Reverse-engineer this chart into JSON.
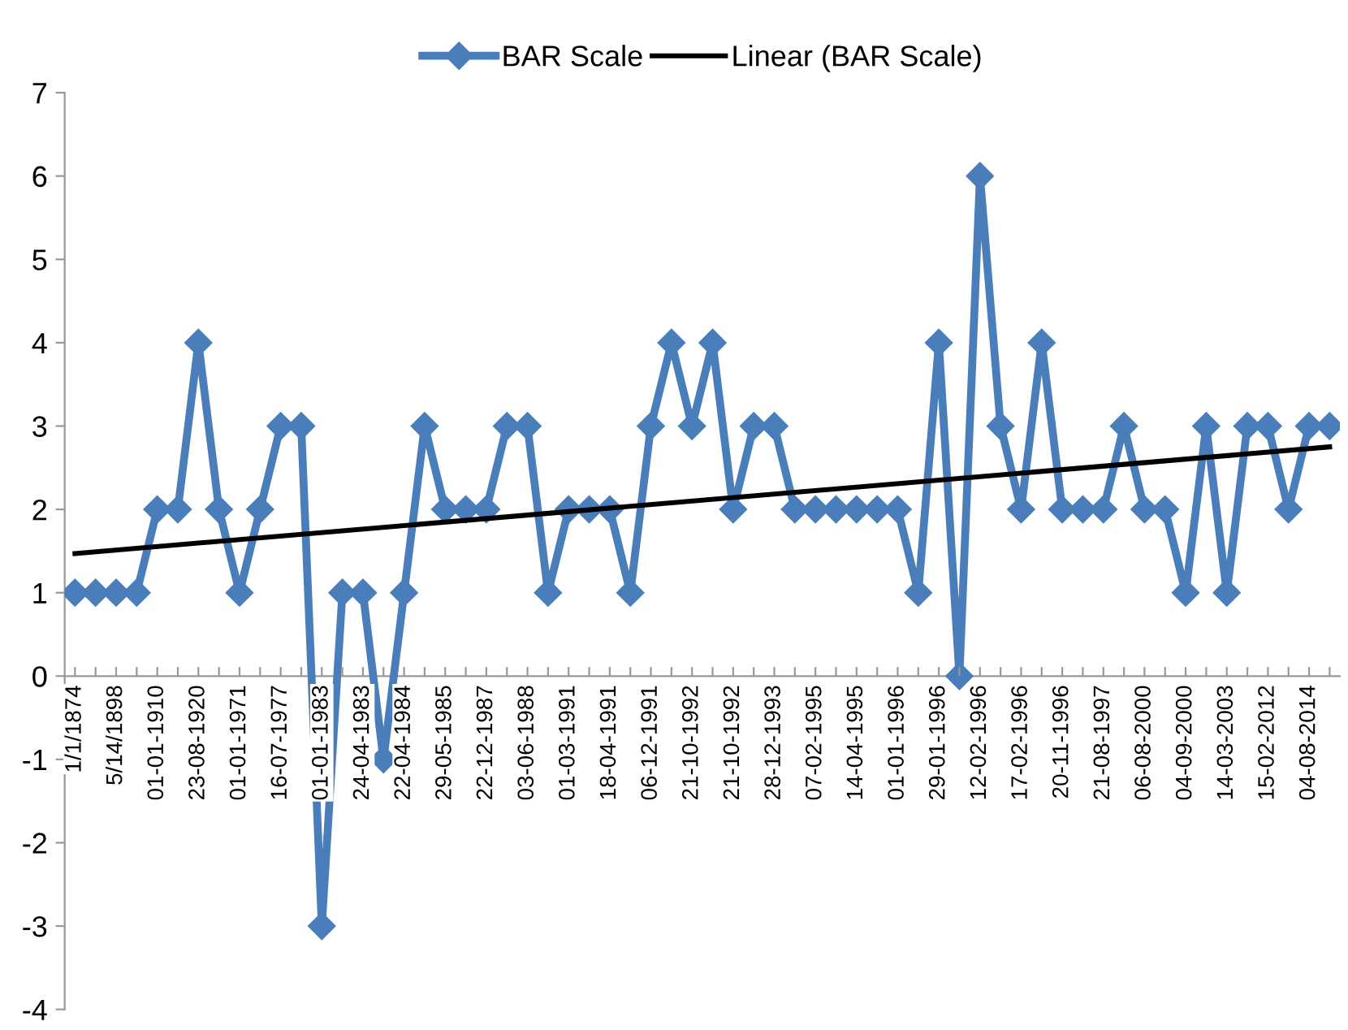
{
  "chart_data": {
    "type": "line",
    "categories": [
      "1/1/1874",
      null,
      "5/14/1898",
      null,
      "01-01-1910",
      null,
      "23-08-1920",
      null,
      "01-01-1971",
      null,
      "16-07-1977",
      null,
      "01-01-1983",
      null,
      "24-04-1983",
      null,
      "22-04-1984",
      null,
      "29-05-1985",
      null,
      "22-12-1987",
      null,
      "03-06-1988",
      null,
      "01-03-1991",
      null,
      "18-04-1991",
      null,
      "06-12-1991",
      null,
      "21-10-1992",
      null,
      "21-10-1992",
      null,
      "28-12-1993",
      null,
      "07-02-1995",
      null,
      "14-04-1995",
      null,
      "01-01-1996",
      null,
      "29-01-1996",
      null,
      "12-02-1996",
      null,
      "17-02-1996",
      null,
      "20-11-1996",
      null,
      "21-08-1997",
      null,
      "06-08-2000",
      null,
      "04-09-2000",
      null,
      "14-03-2003",
      null,
      "15-02-2012",
      null,
      "04-08-2014",
      null
    ],
    "series": [
      {
        "name": "BAR Scale",
        "color": "#4a7ebb",
        "marker": "diamond",
        "values": [
          1,
          1,
          1,
          1,
          2,
          2,
          4,
          2,
          1,
          2,
          3,
          3,
          -3,
          1,
          1,
          -1,
          1,
          3,
          2,
          2,
          2,
          3,
          3,
          1,
          2,
          2,
          2,
          1,
          3,
          4,
          3,
          4,
          2,
          3,
          3,
          2,
          2,
          2,
          2,
          2,
          2,
          1,
          4,
          0,
          6,
          3,
          2,
          4,
          2,
          2,
          2,
          3,
          2,
          2,
          1,
          3,
          1,
          3,
          3,
          2,
          3,
          3
        ]
      },
      {
        "name": "Linear (BAR Scale)",
        "color": "#000000",
        "marker": "none",
        "values": [
          1.47,
          null,
          null,
          null,
          null,
          null,
          null,
          null,
          null,
          null,
          null,
          null,
          null,
          null,
          null,
          null,
          null,
          null,
          null,
          null,
          null,
          null,
          null,
          null,
          null,
          null,
          null,
          null,
          null,
          null,
          null,
          null,
          null,
          null,
          null,
          null,
          null,
          null,
          null,
          null,
          null,
          null,
          null,
          null,
          null,
          null,
          null,
          null,
          null,
          null,
          null,
          null,
          null,
          null,
          null,
          null,
          null,
          null,
          null,
          null,
          null,
          2.75
        ]
      }
    ],
    "ylim": [
      -4,
      7
    ],
    "yticks": [
      -4,
      -3,
      -2,
      -1,
      0,
      1,
      2,
      3,
      4,
      5,
      6,
      7
    ],
    "grid": false,
    "legend": "top",
    "line_style": "solid"
  }
}
